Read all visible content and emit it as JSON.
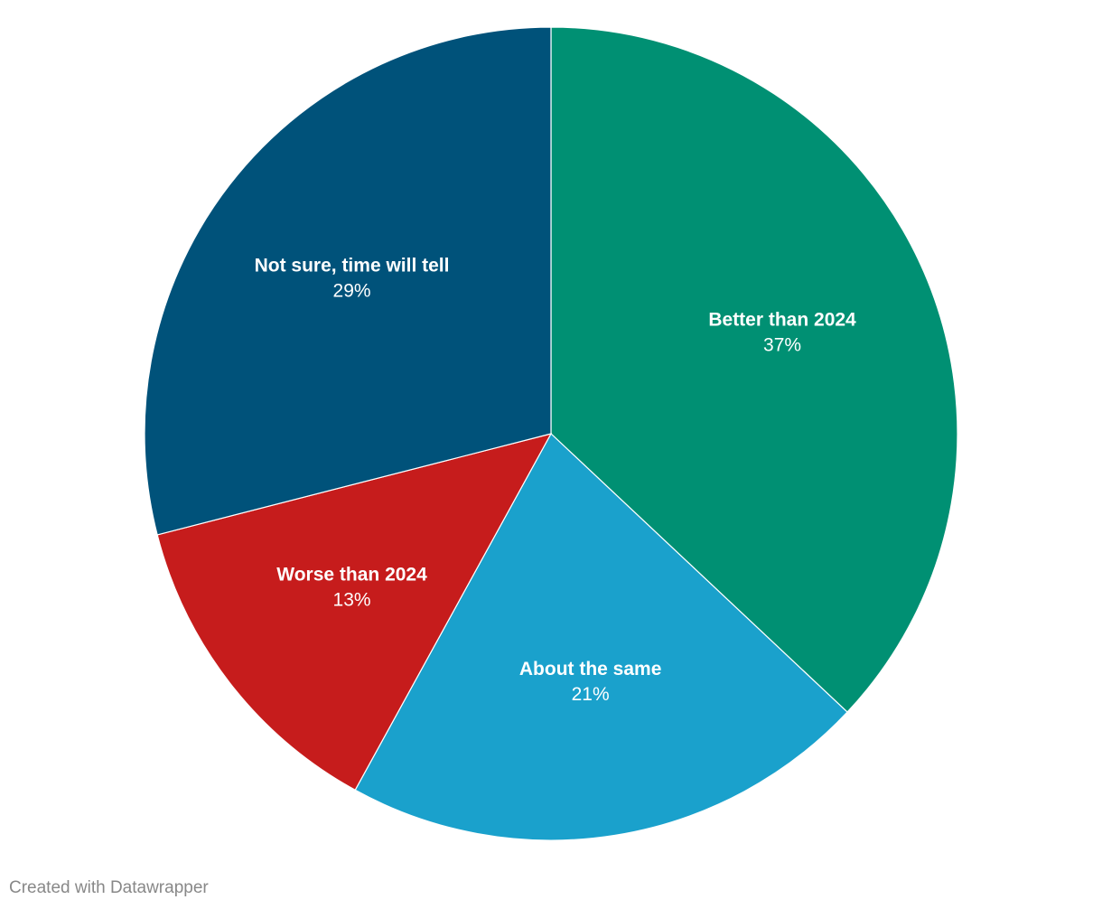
{
  "chart_data": {
    "type": "pie",
    "categories": [
      "Better than 2024",
      "About the same",
      "Worse than 2024",
      "Not sure, time will tell"
    ],
    "values": [
      37,
      21,
      13,
      29
    ],
    "value_labels": [
      "37%",
      "21%",
      "13%",
      "29%"
    ],
    "colors": [
      "#009073",
      "#1aa1cc",
      "#c61c1c",
      "#00527a"
    ],
    "footer": "Created with Datawrapper"
  }
}
